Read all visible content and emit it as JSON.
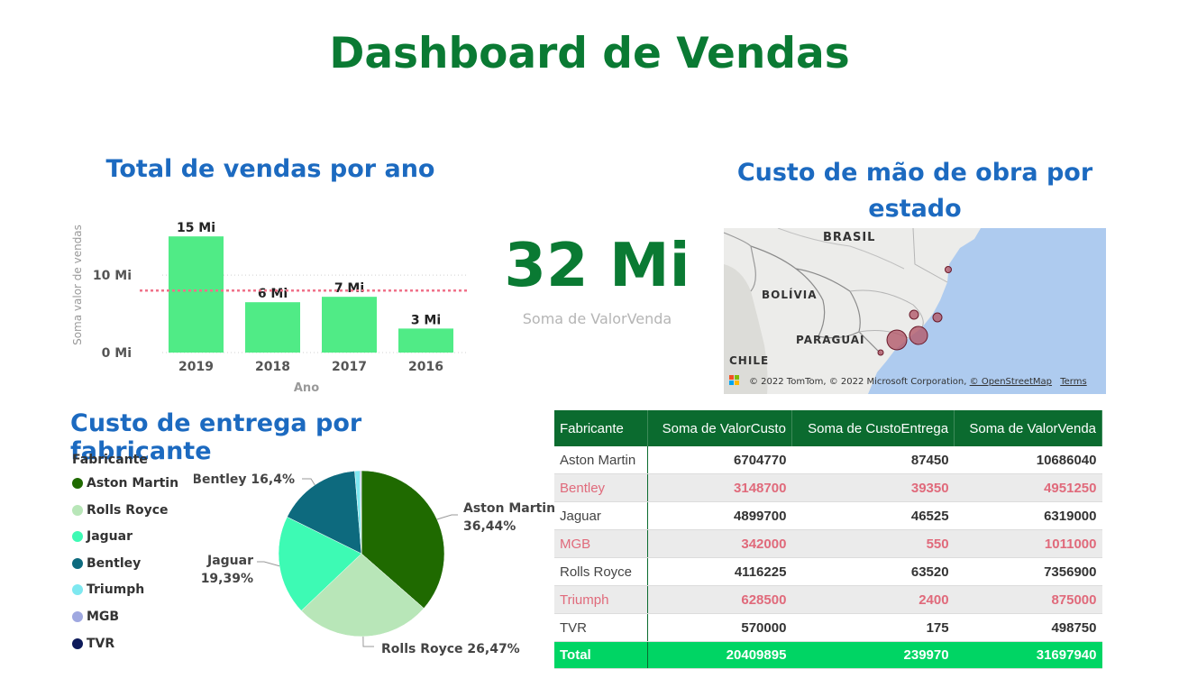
{
  "title": "Dashboard de Vendas",
  "bar_section": {
    "title": "Total de vendas por ano",
    "yticks": [
      "0 Mi",
      "10 Mi"
    ]
  },
  "kpi": {
    "value": "32 Mi",
    "label": "Soma de ValorVenda"
  },
  "map_section": {
    "title_line1": "Custo de mão de obra por",
    "title_line2": "estado",
    "labels": {
      "brasil": "BRASIL",
      "bolivia": "BOLÍVIA",
      "paraguai": "PARAGUAI",
      "chile": "CHILE"
    },
    "attribution": "© 2022 TomTom, © 2022 Microsoft Corporation,",
    "osm": "© OpenStreetMap",
    "terms": "Terms",
    "bubble_color": "#a84a5a"
  },
  "pie_section": {
    "title": "Custo de entrega por fabricante",
    "legend_title": "Fabricante",
    "legend": [
      {
        "name": "Aston Martin",
        "color": "#1f6a00"
      },
      {
        "name": "Rolls Royce",
        "color": "#b8e6b8"
      },
      {
        "name": "Jaguar",
        "color": "#3dfab4"
      },
      {
        "name": "Bentley",
        "color": "#0d6a7e"
      },
      {
        "name": "Triumph",
        "color": "#7ee8f0"
      },
      {
        "name": "MGB",
        "color": "#9fa8e0"
      },
      {
        "name": "TVR",
        "color": "#0d1a5a"
      }
    ]
  },
  "table": {
    "headers": [
      "Fabricante",
      "Soma de ValorCusto",
      "Soma de CustoEntrega",
      "Soma de ValorVenda"
    ],
    "rows": [
      [
        "Aston Martin",
        "6704770",
        "87450",
        "10686040"
      ],
      [
        "Bentley",
        "3148700",
        "39350",
        "4951250"
      ],
      [
        "Jaguar",
        "4899700",
        "46525",
        "6319000"
      ],
      [
        "MGB",
        "342000",
        "550",
        "1011000"
      ],
      [
        "Rolls Royce",
        "4116225",
        "63520",
        "7356900"
      ],
      [
        "Triumph",
        "628500",
        "2400",
        "875000"
      ],
      [
        "TVR",
        "570000",
        "175",
        "498750"
      ]
    ],
    "total": [
      "Total",
      "20409895",
      "239970",
      "31697940"
    ]
  },
  "chart_data": [
    {
      "type": "bar",
      "title": "Total de vendas por ano",
      "xlabel": "Ano",
      "ylabel": "Soma valor de vendas",
      "categories": [
        "2019",
        "2018",
        "2017",
        "2016"
      ],
      "values": [
        15,
        6.5,
        7.2,
        3.1
      ],
      "data_labels": [
        "15 Mi",
        "6 Mi",
        "7 Mi",
        "3 Mi"
      ],
      "average_line": 8.0,
      "ylim": [
        0,
        17
      ],
      "color": "#50eb86",
      "average_color": "#f0728a"
    },
    {
      "type": "pie",
      "title": "Custo de entrega por fabricante",
      "categories": [
        "Aston Martin",
        "Rolls Royce",
        "Jaguar",
        "Bentley",
        "Triumph",
        "MGB",
        "TVR"
      ],
      "values": [
        36.44,
        26.47,
        19.39,
        16.4,
        1.0,
        0.23,
        0.07
      ],
      "labels": [
        {
          "name": "Aston Martin",
          "pct": "36,44%"
        },
        {
          "name": "Rolls Royce",
          "pct": "26,47%"
        },
        {
          "name": "Jaguar",
          "pct": "19,39%"
        },
        {
          "name": "Bentley",
          "pct": "16,4%"
        }
      ]
    }
  ]
}
